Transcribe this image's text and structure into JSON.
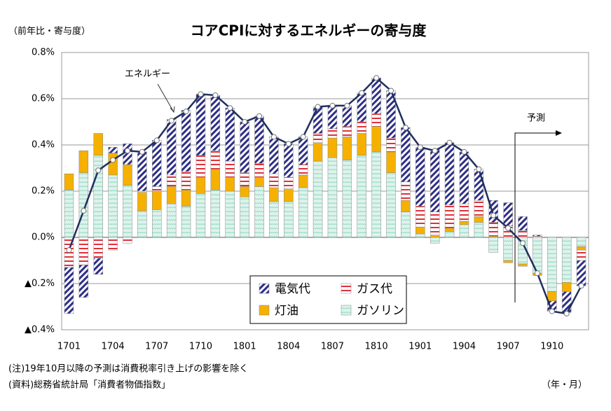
{
  "chart_data": {
    "type": "stacked_bar_line",
    "title": "コアCPIに対するエネルギーの寄与度",
    "y_label": "（前年比・寄与度）",
    "x_label": "（年・月）",
    "annotations": [
      "エネルギー",
      "予測"
    ],
    "notes": [
      "(注)19年10月以降の予測は消費税率引き上げの影響を除く",
      "(資料)総務省統計局「消費者物価指数」"
    ],
    "categories": [
      "1701",
      null,
      null,
      "1704",
      null,
      null,
      "1707",
      null,
      null,
      "1710",
      null,
      null,
      "1801",
      null,
      null,
      "1804",
      null,
      null,
      "1807",
      null,
      null,
      "1810",
      null,
      null,
      "1901",
      null,
      null,
      "1904",
      null,
      null,
      "1907",
      null,
      null,
      "1910",
      null,
      null
    ],
    "series": [
      {
        "name": "ガソリン",
        "color": "#9fdcc8",
        "values": [
          0.205,
          0.28,
          0.355,
          0.27,
          0.225,
          0.115,
          0.12,
          0.145,
          0.135,
          0.19,
          0.205,
          0.2,
          0.175,
          0.22,
          0.155,
          0.155,
          0.215,
          0.33,
          0.345,
          0.335,
          0.355,
          0.37,
          0.28,
          0.11,
          0.015,
          -0.025,
          0.025,
          0.055,
          0.065,
          -0.065,
          -0.1,
          -0.115,
          -0.155,
          -0.235,
          -0.195,
          -0.04
        ]
      },
      {
        "name": "灯油",
        "color": "#f5b000",
        "values": [
          0.07,
          0.095,
          0.095,
          0.095,
          0.09,
          0.08,
          0.08,
          0.075,
          0.07,
          0.07,
          0.09,
          0.06,
          0.045,
          0.04,
          0.06,
          0.055,
          0.055,
          0.08,
          0.085,
          0.1,
          0.095,
          0.11,
          0.09,
          0.05,
          0.03,
          0.01,
          0.015,
          0.015,
          0.025,
          0.005,
          -0.01,
          -0.01,
          -0.01,
          -0.04,
          -0.04,
          -0.015
        ]
      },
      {
        "name": "ガス代",
        "color": "#e0303a",
        "values": [
          -0.13,
          -0.12,
          -0.09,
          -0.055,
          -0.025,
          0.005,
          0.02,
          0.05,
          0.08,
          0.095,
          0.08,
          0.07,
          0.06,
          0.06,
          0.06,
          0.05,
          0.045,
          0.04,
          0.04,
          0.045,
          0.05,
          0.055,
          0.06,
          0.08,
          0.09,
          0.1,
          0.1,
          0.075,
          0.07,
          0.06,
          0.05,
          0.03,
          0.005,
          0,
          0,
          -0.045
        ]
      },
      {
        "name": "電気代",
        "color": "#2e2e86",
        "values": [
          -0.2,
          -0.14,
          -0.07,
          0.025,
          0.09,
          0.17,
          0.2,
          0.24,
          0.265,
          0.265,
          0.24,
          0.23,
          0.22,
          0.205,
          0.16,
          0.145,
          0.12,
          0.115,
          0.1,
          0.09,
          0.125,
          0.155,
          0.205,
          0.235,
          0.255,
          0.27,
          0.27,
          0.225,
          0.135,
          0.095,
          0.1,
          0.06,
          0.005,
          -0.045,
          -0.09,
          -0.11
        ]
      }
    ],
    "line": {
      "name": "エネルギー",
      "color": "#1f2f5e",
      "values": [
        -0.055,
        0.115,
        0.29,
        0.335,
        0.375,
        0.37,
        0.42,
        0.505,
        0.545,
        0.62,
        0.615,
        0.56,
        0.5,
        0.525,
        0.435,
        0.405,
        0.435,
        0.565,
        0.57,
        0.57,
        0.625,
        0.69,
        0.635,
        0.475,
        0.39,
        0.375,
        0.41,
        0.37,
        0.295,
        0.095,
        0.04,
        -0.025,
        -0.155,
        -0.32,
        -0.33,
        -0.21
      ]
    },
    "ylim": [
      -0.4,
      0.8
    ],
    "yticks": [
      {
        "value": 0.8,
        "label": "0.8%"
      },
      {
        "value": 0.6,
        "label": "0.6%"
      },
      {
        "value": 0.4,
        "label": "0.4%"
      },
      {
        "value": 0.2,
        "label": "0.2%"
      },
      {
        "value": 0,
        "label": "0.0%"
      },
      {
        "value": -0.2,
        "label": "▲0.2%"
      },
      {
        "value": -0.4,
        "label": "▲0.4%"
      }
    ],
    "grid": true
  }
}
